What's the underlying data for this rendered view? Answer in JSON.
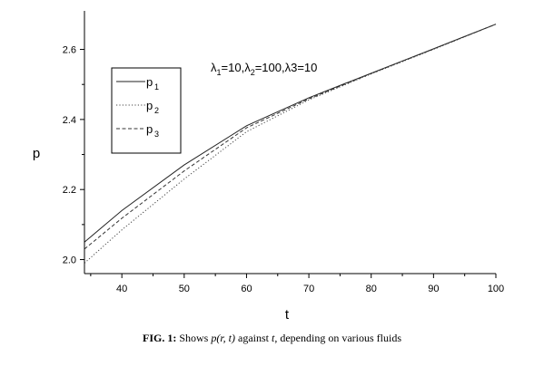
{
  "chart_data": {
    "type": "line",
    "title": "",
    "xlabel": "t",
    "ylabel": "p",
    "xlim": [
      34,
      100
    ],
    "ylim": [
      1.96,
      2.71
    ],
    "xticks": [
      40,
      50,
      60,
      70,
      80,
      90,
      100
    ],
    "yticks": [
      2.0,
      2.2,
      2.4,
      2.6
    ],
    "yticks_labels": [
      "2.0",
      "2.2",
      "2.4",
      "2.6"
    ],
    "grid": false,
    "legend_position": "top-left",
    "annotation": {
      "l1_sym": "λ",
      "l1_sub": "1",
      "l1_val": "=10,",
      "l2_sym": "λ",
      "l2_sub": "2",
      "l2_val": "=100,",
      "l3_text": "λ3=10"
    },
    "series": [
      {
        "name": "p",
        "name_sub": "1",
        "style": "solid",
        "color": "#222222",
        "x": [
          34,
          40,
          50,
          60,
          70,
          80,
          90,
          100
        ],
        "y": [
          2.05,
          2.14,
          2.27,
          2.382,
          2.462,
          2.532,
          2.602,
          2.672
        ]
      },
      {
        "name": "p",
        "name_sub": "2",
        "style": "dotted",
        "color": "#444444",
        "x": [
          34,
          40,
          50,
          60,
          70,
          80,
          90,
          100
        ],
        "y": [
          1.99,
          2.085,
          2.23,
          2.365,
          2.456,
          2.53,
          2.6,
          2.672
        ]
      },
      {
        "name": "p",
        "name_sub": "3",
        "style": "dashed",
        "color": "#333333",
        "x": [
          34,
          40,
          50,
          60,
          70,
          80,
          90,
          100
        ],
        "y": [
          2.03,
          2.118,
          2.253,
          2.376,
          2.459,
          2.531,
          2.601,
          2.672
        ]
      }
    ]
  },
  "caption": {
    "lead": "FIG. 1:",
    "text1": " Shows ",
    "math1": "p(r, t)",
    "text2": " against ",
    "math2": "t",
    "text3": ", depending on various fluids"
  }
}
